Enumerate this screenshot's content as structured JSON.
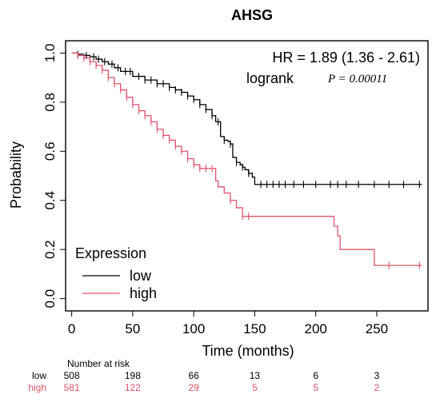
{
  "chart_data": {
    "type": "line",
    "title": "AHSG",
    "xlabel": "Time (months)",
    "ylabel": "Probability",
    "xlim": [
      -5,
      292
    ],
    "ylim": [
      -0.05,
      1.05
    ],
    "xticks": [
      0,
      50,
      100,
      150,
      200,
      250
    ],
    "yticks": [
      0.0,
      0.2,
      0.4,
      0.6,
      0.8,
      1.0
    ],
    "ytick_labels": [
      "0.0",
      "0.2",
      "0.4",
      "0.6",
      "0.8",
      "1.0"
    ],
    "grid": false,
    "legend": {
      "title": "Expression",
      "position": "bottom-left",
      "entries": [
        "low",
        "high"
      ]
    },
    "annotations": {
      "hr": "HR = 1.89 (1.36 - 2.61)",
      "logrank_label": "logrank",
      "p_value": "P = 0.00011"
    },
    "colors": {
      "low": "#000000",
      "high": "#df536b"
    },
    "series": [
      {
        "name": "low",
        "color": "#000000",
        "x": [
          0,
          5,
          10,
          15,
          20,
          25,
          30,
          35,
          40,
          50,
          60,
          70,
          80,
          85,
          90,
          95,
          100,
          105,
          110,
          115,
          118,
          122,
          125,
          128,
          130,
          132,
          135,
          138,
          140,
          142,
          145,
          148,
          150,
          287
        ],
        "y": [
          1.0,
          0.995,
          0.99,
          0.985,
          0.975,
          0.965,
          0.955,
          0.94,
          0.925,
          0.905,
          0.89,
          0.875,
          0.86,
          0.85,
          0.84,
          0.825,
          0.81,
          0.79,
          0.77,
          0.745,
          0.72,
          0.66,
          0.645,
          0.64,
          0.63,
          0.575,
          0.555,
          0.545,
          0.535,
          0.525,
          0.51,
          0.495,
          0.465,
          0.465
        ],
        "censor_x": [
          5,
          12,
          18,
          22,
          27,
          33,
          38,
          44,
          48,
          55,
          60,
          65,
          70,
          75,
          80,
          85,
          90,
          95,
          100,
          105,
          110,
          115,
          120,
          125,
          130,
          135,
          140,
          145,
          155,
          160,
          165,
          170,
          175,
          182,
          190,
          200,
          212,
          218,
          225,
          235,
          248,
          260,
          272,
          285
        ]
      },
      {
        "name": "high",
        "color": "#df536b",
        "x": [
          0,
          5,
          10,
          15,
          20,
          25,
          30,
          35,
          40,
          45,
          50,
          55,
          60,
          65,
          70,
          75,
          80,
          85,
          90,
          95,
          100,
          105,
          110,
          115,
          118,
          120,
          125,
          130,
          135,
          140,
          145,
          150,
          160,
          180,
          200,
          210,
          215,
          218,
          220,
          240,
          245,
          248,
          250,
          287
        ],
        "y": [
          1.0,
          0.99,
          0.98,
          0.965,
          0.95,
          0.93,
          0.9,
          0.875,
          0.85,
          0.82,
          0.79,
          0.765,
          0.745,
          0.72,
          0.69,
          0.665,
          0.645,
          0.62,
          0.6,
          0.57,
          0.545,
          0.53,
          0.53,
          0.53,
          0.48,
          0.455,
          0.43,
          0.4,
          0.37,
          0.335,
          0.335,
          0.335,
          0.335,
          0.335,
          0.335,
          0.335,
          0.295,
          0.255,
          0.2,
          0.2,
          0.2,
          0.135,
          0.135,
          0.135
        ],
        "censor_x": [
          5,
          10,
          15,
          20,
          25,
          30,
          35,
          40,
          45,
          50,
          55,
          60,
          65,
          70,
          75,
          80,
          85,
          90,
          95,
          100,
          105,
          110,
          115,
          130,
          140,
          145,
          260,
          285
        ]
      }
    ],
    "risk_table": {
      "title": "Number at risk",
      "times": [
        0,
        50,
        100,
        150,
        200,
        250
      ],
      "rows": [
        {
          "label": "low",
          "values": [
            "508",
            "198",
            "66",
            "13",
            "6",
            "3"
          ]
        },
        {
          "label": "high",
          "values": [
            "581",
            "122",
            "29",
            "5",
            "5",
            "2"
          ]
        }
      ]
    }
  }
}
